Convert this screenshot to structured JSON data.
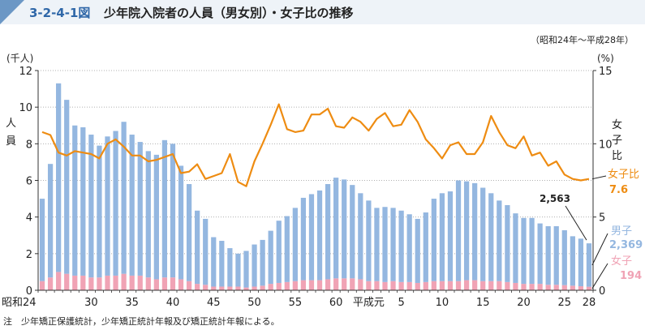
{
  "figure": {
    "id": "3-2-4-1図",
    "title": "少年院入院者の人員（男女別）・女子比の推移",
    "period": "（昭和24年～平成28年）",
    "note": "注　少年矯正保護統計，少年矯正統計年報及び矯正統計年報による。"
  },
  "chart_data": {
    "type": "bar",
    "stacked": true,
    "years": [
      "昭和24",
      "25",
      "26",
      "27",
      "28",
      "29",
      "30",
      "31",
      "32",
      "33",
      "34",
      "35",
      "36",
      "37",
      "38",
      "39",
      "40",
      "41",
      "42",
      "43",
      "44",
      "45",
      "46",
      "47",
      "48",
      "49",
      "50",
      "51",
      "52",
      "53",
      "54",
      "55",
      "56",
      "57",
      "58",
      "59",
      "60",
      "61",
      "62",
      "63",
      "平成元",
      "2",
      "3",
      "4",
      "5",
      "6",
      "7",
      "8",
      "9",
      "10",
      "11",
      "12",
      "13",
      "14",
      "15",
      "16",
      "17",
      "18",
      "19",
      "20",
      "21",
      "22",
      "23",
      "24",
      "25",
      "26",
      "27",
      "28"
    ],
    "x_tick_labels": [
      {
        "index": 0,
        "label": "昭和24"
      },
      {
        "index": 6,
        "label": "30"
      },
      {
        "index": 11,
        "label": "35"
      },
      {
        "index": 16,
        "label": "40"
      },
      {
        "index": 21,
        "label": "45"
      },
      {
        "index": 26,
        "label": "50"
      },
      {
        "index": 31,
        "label": "55"
      },
      {
        "index": 36,
        "label": "60"
      },
      {
        "index": 40,
        "label": "平成元"
      },
      {
        "index": 44,
        "label": "5"
      },
      {
        "index": 49,
        "label": "10"
      },
      {
        "index": 54,
        "label": "15"
      },
      {
        "index": 59,
        "label": "20"
      },
      {
        "index": 64,
        "label": "25"
      },
      {
        "index": 67,
        "label": "28"
      }
    ],
    "left_axis": {
      "label": "(千人)",
      "side_label": "人員",
      "min": 0,
      "max": 12,
      "ticks": [
        0,
        2,
        4,
        6,
        8,
        10,
        12
      ]
    },
    "right_axis": {
      "label": "(%)",
      "side_label": "女子比",
      "min": 0,
      "max": 15,
      "ticks": [
        0,
        5,
        10,
        15
      ]
    },
    "series": [
      {
        "name": "男子",
        "color": "#94b7e0",
        "axis": "left",
        "values": [
          4.5,
          6.2,
          10.3,
          9.5,
          8.2,
          8.1,
          7.8,
          7.2,
          7.6,
          7.9,
          8.3,
          7.7,
          7.3,
          6.9,
          6.8,
          7.5,
          7.3,
          6.2,
          5.3,
          4.0,
          3.6,
          2.7,
          2.5,
          2.1,
          1.8,
          2.0,
          2.3,
          2.5,
          2.9,
          3.4,
          3.6,
          4.0,
          4.5,
          4.7,
          4.9,
          5.2,
          5.5,
          5.4,
          5.1,
          4.7,
          4.4,
          4.0,
          4.1,
          4.0,
          3.9,
          3.7,
          3.5,
          3.8,
          4.5,
          4.8,
          4.9,
          5.5,
          5.4,
          5.3,
          5.1,
          4.8,
          4.4,
          4.2,
          3.8,
          3.6,
          3.6,
          3.3,
          3.2,
          3.2,
          3.0,
          2.7,
          2.6,
          2.369
        ]
      },
      {
        "name": "女子",
        "color": "#f0a3b5",
        "axis": "left",
        "values": [
          0.5,
          0.7,
          1.0,
          0.9,
          0.8,
          0.8,
          0.7,
          0.7,
          0.8,
          0.8,
          0.9,
          0.8,
          0.8,
          0.7,
          0.6,
          0.7,
          0.7,
          0.6,
          0.5,
          0.35,
          0.3,
          0.2,
          0.2,
          0.2,
          0.2,
          0.15,
          0.2,
          0.25,
          0.35,
          0.4,
          0.45,
          0.5,
          0.55,
          0.55,
          0.55,
          0.6,
          0.65,
          0.65,
          0.65,
          0.6,
          0.5,
          0.5,
          0.45,
          0.5,
          0.45,
          0.45,
          0.4,
          0.45,
          0.5,
          0.5,
          0.5,
          0.5,
          0.55,
          0.55,
          0.5,
          0.5,
          0.5,
          0.45,
          0.4,
          0.35,
          0.35,
          0.35,
          0.3,
          0.3,
          0.28,
          0.25,
          0.22,
          0.194
        ]
      },
      {
        "name": "女子比",
        "color": "#ee8c12",
        "axis": "right",
        "type": "line",
        "values": [
          10.8,
          10.6,
          9.4,
          9.2,
          9.5,
          9.4,
          9.3,
          9.0,
          10.0,
          10.3,
          9.8,
          9.2,
          9.2,
          8.8,
          8.9,
          9.1,
          9.3,
          8.0,
          8.1,
          8.6,
          7.6,
          7.8,
          8.0,
          9.3,
          7.4,
          7.1,
          8.8,
          10.0,
          11.3,
          12.7,
          11.0,
          10.8,
          10.9,
          12.0,
          12.0,
          12.4,
          11.2,
          11.1,
          11.8,
          11.5,
          10.9,
          11.7,
          12.1,
          11.2,
          11.3,
          12.3,
          11.5,
          10.3,
          9.7,
          9.0,
          9.9,
          10.1,
          9.3,
          9.3,
          10.1,
          11.9,
          10.8,
          9.9,
          9.7,
          10.5,
          9.2,
          9.4,
          8.5,
          8.8,
          7.9,
          7.6,
          7.5,
          7.6
        ]
      }
    ],
    "annotations": {
      "male_total": "2,563",
      "male_legend": "男子",
      "male_value": "2,369",
      "female_legend": "女子",
      "female_value": "194",
      "ratio_legend": "女子比",
      "ratio_value": "7.6"
    }
  }
}
